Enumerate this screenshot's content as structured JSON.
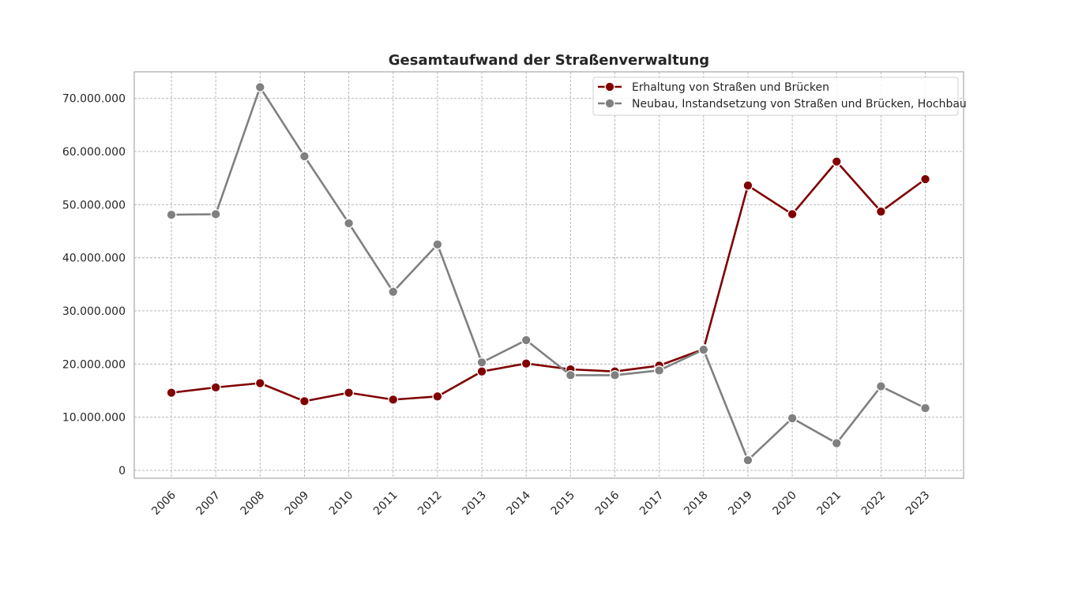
{
  "chart_data": {
    "type": "line",
    "title": "Gesamtaufwand der Straßenverwaltung",
    "xlabel": "",
    "ylabel": "",
    "ylim": [
      -1500000,
      75000000
    ],
    "grid": true,
    "legend_position": "top-right",
    "x": [
      "2006",
      "2007",
      "2008",
      "2009",
      "2010",
      "2011",
      "2012",
      "2013",
      "2014",
      "2015",
      "2016",
      "2017",
      "2018",
      "2019",
      "2020",
      "2021",
      "2022",
      "2023"
    ],
    "y_ticks": [
      0,
      10000000,
      20000000,
      30000000,
      40000000,
      50000000,
      60000000,
      70000000
    ],
    "y_tick_labels": [
      "0",
      "10.000.000",
      "20.000.000",
      "30.000.000",
      "40.000.000",
      "50.000.000",
      "60.000.000",
      "70.000.000"
    ],
    "series": [
      {
        "name": "Erhaltung von Straßen und Brücken",
        "color": "#800000",
        "values": [
          14600000,
          15600000,
          16400000,
          13000000,
          14600000,
          13300000,
          13900000,
          18600000,
          20100000,
          19000000,
          18600000,
          19700000,
          22800000,
          53600000,
          48200000,
          58100000,
          48700000,
          54800000
        ]
      },
      {
        "name": "Neubau, Instandsetzung von Straßen und Brücken, Hochbau",
        "color": "#808080",
        "values": [
          48100000,
          48200000,
          72100000,
          59100000,
          46500000,
          33600000,
          42500000,
          20300000,
          24500000,
          17900000,
          17900000,
          18800000,
          22700000,
          1900000,
          9800000,
          5100000,
          15800000,
          11700000
        ]
      }
    ]
  }
}
